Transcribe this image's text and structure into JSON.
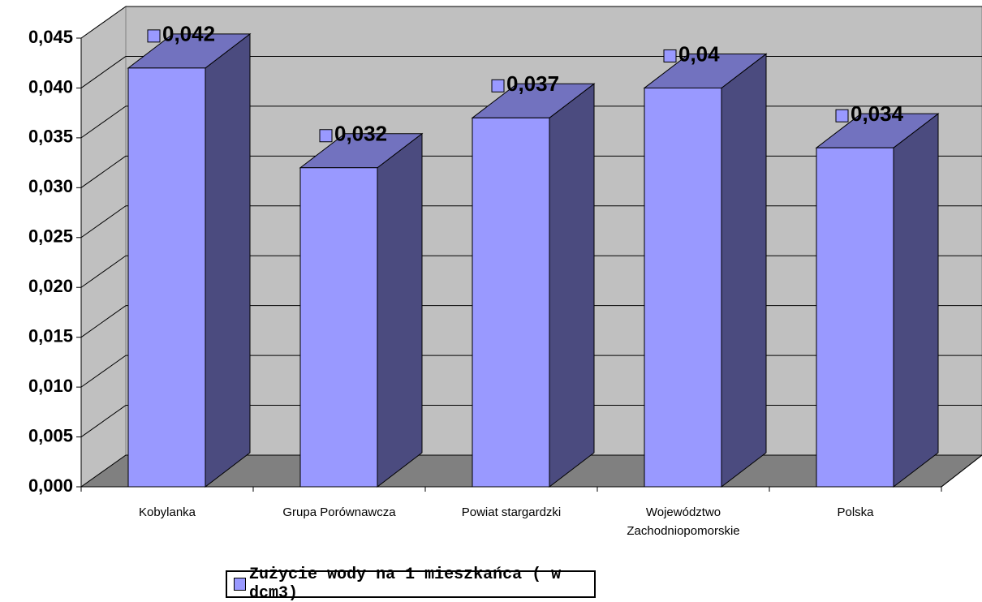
{
  "chart_data": {
    "type": "bar3d",
    "categories": [
      "Kobylanka",
      "Grupa Porównawcza",
      "Powiat stargardzki",
      "Województwo Zachodniopomorskie",
      "Polska"
    ],
    "series": [
      {
        "name": "Zużycie wody na 1 mieszkańca ( w dcm3)",
        "color": "#9999ff",
        "values": [
          0.042,
          0.032,
          0.037,
          0.04,
          0.034
        ],
        "value_labels": [
          "0,042",
          "0,032",
          "0,037",
          "0,04",
          "0,034"
        ]
      }
    ],
    "ylim": [
      0,
      0.045
    ],
    "yticks": [
      {
        "value": 0,
        "label": "0,000"
      },
      {
        "value": 0.005,
        "label": "0,005"
      },
      {
        "value": 0.01,
        "label": "0,010"
      },
      {
        "value": 0.015,
        "label": "0,015"
      },
      {
        "value": 0.02,
        "label": "0,020"
      },
      {
        "value": 0.025,
        "label": "0,025"
      },
      {
        "value": 0.03,
        "label": "0,030"
      },
      {
        "value": 0.035,
        "label": "0,035"
      },
      {
        "value": 0.04,
        "label": "0,040"
      },
      {
        "value": 0.045,
        "label": "0,045"
      }
    ],
    "grid": true,
    "legend": "bottom"
  }
}
